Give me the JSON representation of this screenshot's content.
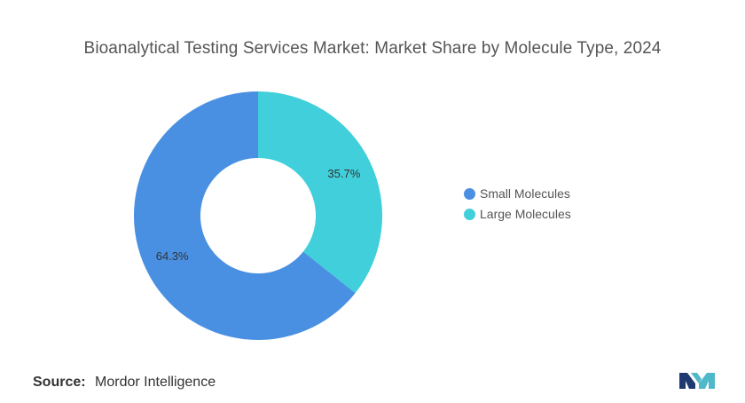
{
  "chart_data": {
    "type": "pie",
    "donut": true,
    "title": "Bioanalytical Testing Services Market: Market Share by Molecule Type, 2024",
    "slices": [
      {
        "label": "Small Molecules",
        "value": 64.3,
        "value_label": "64.3%",
        "color": "#4A90E2"
      },
      {
        "label": "Large Molecules",
        "value": 35.7,
        "value_label": "35.7%",
        "color": "#40CFDB"
      }
    ],
    "legend_position": "right"
  },
  "source": {
    "label": "Source:",
    "text": "Mordor Intelligence"
  },
  "logo": {
    "icon": "mordor-intelligence-logo-icon",
    "colors": [
      "#1F3A70",
      "#4FB8C9"
    ]
  }
}
